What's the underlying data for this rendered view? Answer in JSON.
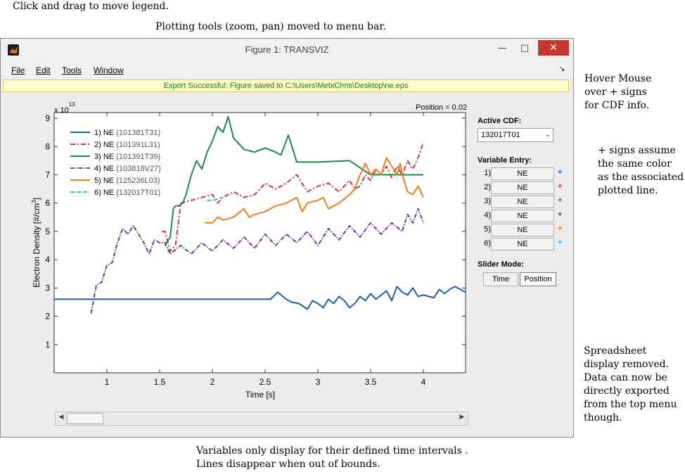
{
  "annotations": {
    "legend_drag": "Click and drag to move legend.",
    "plot_tools": "Plotting tools (zoom, pan) moved to menu bar.",
    "hover": [
      "Hover Mouse",
      "over + signs",
      "for CDF info."
    ],
    "plus_signs": [
      "+ signs assume",
      "the same color",
      "as the associated",
      "plotted line."
    ],
    "spreadsheet": [
      "Spreadsheet",
      "display removed.",
      "Data can now be",
      "directly exported",
      "from the top menu",
      "though."
    ],
    "variables": [
      "Variables only display for their defined time intervals .",
      "Lines disappear when out of bounds."
    ]
  },
  "window": {
    "title": "Figure 1: TRANSVIZ",
    "minimize": "—",
    "maximize": "□",
    "close": "✕",
    "menu": {
      "file": "File",
      "edit": "Edit",
      "tools": "Tools",
      "window": "Window",
      "dock": "↘"
    },
    "export_message": "Export Successful:  Figure saved to C:\\Users\\MetxChris\\Desktop\\ne.eps",
    "position_label": "Position = 0.02"
  },
  "side_panel": {
    "active_cdf_label": "Active CDF:",
    "active_cdf_value": "132017T01",
    "variable_entry_label": "Variable Entry:",
    "variables": [
      {
        "num": "1)",
        "name": "NE",
        "plus": "+",
        "color": "#1f5fa8"
      },
      {
        "num": "2)",
        "name": "NE",
        "plus": "+",
        "color": "#e0323a"
      },
      {
        "num": "3)",
        "name": "NE",
        "plus": "+",
        "color": "#1d8a4e"
      },
      {
        "num": "4)",
        "name": "NE",
        "plus": "+",
        "color": "#6a3b96"
      },
      {
        "num": "5)",
        "name": "NE",
        "plus": "+",
        "color": "#f07c1e"
      },
      {
        "num": "6)",
        "name": "NE",
        "plus": "+",
        "color": "#2fc4c4"
      }
    ],
    "slider_mode_label": "Slider Mode:",
    "time_button": "Time",
    "position_button": "Position"
  },
  "slider": {
    "left_arrow": "◀",
    "right_arrow": "▶"
  },
  "chart_data": {
    "type": "line",
    "xlabel": "Time [s]",
    "ylabel": "Electron Density [#/cm³]",
    "ylabel_parts": [
      "Electron Density [#/cm",
      "3",
      "]"
    ],
    "y_multiplier": "x 10",
    "y_exponent": "13",
    "xlim": [
      0.5,
      4.4
    ],
    "ylim": [
      0,
      9.2
    ],
    "xticks": [
      "1",
      "1.5",
      "2",
      "2.5",
      "3",
      "3.5",
      "4"
    ],
    "xtick_values": [
      1,
      1.5,
      2,
      2.5,
      3,
      3.5,
      4
    ],
    "yticks": [
      "1",
      "2",
      "3",
      "4",
      "5",
      "6",
      "7",
      "8",
      "9"
    ],
    "ytick_values": [
      1,
      2,
      3,
      4,
      5,
      6,
      7,
      8,
      9
    ],
    "series": [
      {
        "name": "1) NE",
        "id": "(101381T31)",
        "color": "#1f5fa8",
        "dash": "",
        "x": [
          0.5,
          2.55,
          2.62,
          2.7,
          2.75,
          2.82,
          2.9,
          2.95,
          3.0,
          3.05,
          3.1,
          3.15,
          3.2,
          3.25,
          3.3,
          3.35,
          3.4,
          3.45,
          3.5,
          3.55,
          3.6,
          3.65,
          3.7,
          3.75,
          3.8,
          3.85,
          3.9,
          3.95,
          4.0,
          4.05,
          4.1,
          4.15,
          4.2,
          4.25,
          4.3,
          4.35,
          4.4
        ],
        "y": [
          2.6,
          2.6,
          2.85,
          2.6,
          2.5,
          2.45,
          2.25,
          2.55,
          2.45,
          2.3,
          2.6,
          2.45,
          2.7,
          2.55,
          2.3,
          2.45,
          2.7,
          2.55,
          2.8,
          2.6,
          2.75,
          2.9,
          2.55,
          3.05,
          2.85,
          2.75,
          3.0,
          2.7,
          2.75,
          2.7,
          2.65,
          2.95,
          2.8,
          2.95,
          3.05,
          2.95,
          2.85
        ]
      },
      {
        "name": "2) NE",
        "id": "(101391L31)",
        "color": "#e0323a",
        "dash": "7,3,2,3",
        "x": [
          1.52,
          1.55,
          1.6,
          1.65,
          1.7,
          1.75,
          1.8,
          1.9,
          2.0,
          2.05,
          2.1,
          2.2,
          2.3,
          2.4,
          2.5,
          2.6,
          2.7,
          2.8,
          2.9,
          3.0,
          3.1,
          3.2,
          3.3,
          3.35,
          3.4,
          3.45,
          3.5,
          3.55,
          3.6,
          3.65,
          3.7,
          3.75,
          3.8,
          3.85,
          3.9,
          3.95,
          4.0
        ],
        "y": [
          5.0,
          5.0,
          4.3,
          4.5,
          6.0,
          6.05,
          6.1,
          6.2,
          6.3,
          6.0,
          6.2,
          6.4,
          6.2,
          6.3,
          6.7,
          6.5,
          6.7,
          7.0,
          6.4,
          6.6,
          6.7,
          6.4,
          6.8,
          6.5,
          6.6,
          7.0,
          6.8,
          7.2,
          7.0,
          7.3,
          6.9,
          7.3,
          7.0,
          7.5,
          7.2,
          7.6,
          8.15
        ]
      },
      {
        "name": "3) NE",
        "id": "(101391T39)",
        "color": "#1d8a4e",
        "dash": "",
        "x": [
          1.55,
          1.6,
          1.63,
          1.65,
          1.68,
          1.72,
          1.75,
          1.8,
          1.85,
          1.9,
          1.95,
          2.0,
          2.05,
          2.1,
          2.15,
          2.2,
          2.3,
          2.4,
          2.5,
          2.6,
          2.65,
          2.72,
          2.8,
          3.0,
          3.3,
          3.5,
          4.0
        ],
        "y": [
          4.5,
          4.8,
          5.8,
          5.9,
          5.9,
          6.0,
          6.3,
          7.0,
          7.5,
          7.2,
          7.8,
          8.2,
          8.7,
          8.5,
          9.05,
          8.3,
          7.9,
          7.8,
          7.95,
          7.8,
          7.7,
          8.4,
          7.45,
          7.45,
          7.5,
          7.0,
          7.0
        ]
      },
      {
        "name": "4) NE",
        "id": "(103818V27)",
        "color": "#6a3b96",
        "dash": "6,2,1.5,2",
        "x": [
          0.85,
          0.9,
          0.95,
          1.0,
          1.05,
          1.1,
          1.15,
          1.2,
          1.25,
          1.3,
          1.35,
          1.4,
          1.45,
          1.5,
          1.55,
          1.6,
          1.7,
          1.8,
          1.9,
          2.0,
          2.1,
          2.2,
          2.3,
          2.4,
          2.5,
          2.6,
          2.7,
          2.8,
          2.9,
          3.0,
          3.1,
          3.2,
          3.3,
          3.4,
          3.5,
          3.6,
          3.7,
          3.8,
          3.85,
          3.9,
          3.95,
          4.0
        ],
        "y": [
          2.1,
          3.1,
          3.2,
          3.8,
          3.9,
          4.6,
          5.1,
          4.9,
          5.2,
          4.9,
          4.6,
          4.2,
          4.7,
          4.6,
          4.6,
          4.2,
          4.5,
          4.2,
          4.6,
          4.3,
          4.7,
          4.4,
          4.8,
          4.4,
          4.9,
          4.5,
          4.9,
          4.6,
          5.0,
          4.5,
          5.1,
          4.7,
          5.2,
          4.8,
          5.3,
          4.9,
          5.3,
          5.0,
          5.6,
          5.3,
          5.8,
          5.3
        ]
      },
      {
        "name": "5) NE",
        "id": "(125236L03)",
        "color": "#f07c1e",
        "dash": "",
        "x": [
          1.93,
          2.0,
          2.05,
          2.1,
          2.2,
          2.3,
          2.35,
          2.4,
          2.5,
          2.6,
          2.7,
          2.8,
          2.85,
          2.9,
          3.0,
          3.05,
          3.1,
          3.2,
          3.3,
          3.35,
          3.4,
          3.45,
          3.5,
          3.55,
          3.6,
          3.65,
          3.7,
          3.75,
          3.78,
          3.8,
          3.85,
          3.9,
          3.95,
          4.0
        ],
        "y": [
          5.3,
          5.3,
          5.5,
          5.4,
          5.5,
          5.8,
          5.5,
          5.6,
          5.7,
          5.9,
          6.0,
          6.2,
          5.7,
          6.0,
          6.1,
          6.2,
          5.8,
          6.0,
          6.3,
          6.5,
          7.0,
          7.4,
          7.0,
          7.2,
          7.0,
          7.6,
          7.3,
          7.0,
          7.4,
          7.0,
          6.4,
          6.3,
          6.6,
          6.2
        ]
      },
      {
        "name": "6) NE",
        "id": "(132017T01)",
        "color": "#2fc4c4",
        "dash": "6,3",
        "x": [
          1.95,
          2.0,
          2.05,
          2.1
        ],
        "y": [
          6.1,
          6.1,
          6.15,
          6.2
        ]
      }
    ]
  }
}
